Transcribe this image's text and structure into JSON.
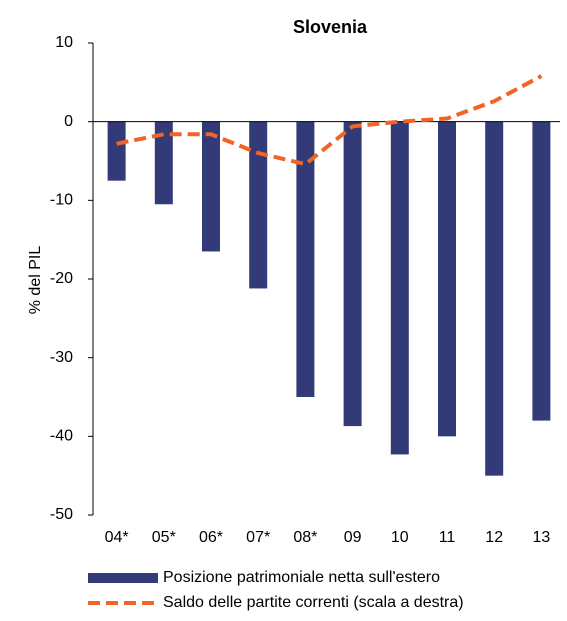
{
  "chart_data": {
    "type": "bar-line",
    "title": "Slovenia",
    "y_label": "% del PIL",
    "categories": [
      "04*",
      "05*",
      "06*",
      "07*",
      "08*",
      "09",
      "10",
      "11",
      "12",
      "13"
    ],
    "series": [
      {
        "name": "Posizione patrimoniale netta sull'estero",
        "type": "bar",
        "color": "#333a78",
        "values": [
          -7.5,
          -10.5,
          -16.5,
          -21.2,
          -35,
          -38.7,
          -42.3,
          -40,
          -45,
          -38
        ]
      },
      {
        "name": "Saldo delle partite correnti (scala a destra)",
        "type": "line",
        "color": "#f06427",
        "dashed": true,
        "values": [
          -2.8,
          -1.6,
          -1.6,
          -4,
          -5.4,
          -0.6,
          0,
          0.4,
          2.6,
          5.8
        ]
      }
    ],
    "ylim": [
      -50,
      10
    ],
    "yticks": [
      -50,
      -40,
      -30,
      -20,
      -10,
      0,
      10
    ]
  }
}
